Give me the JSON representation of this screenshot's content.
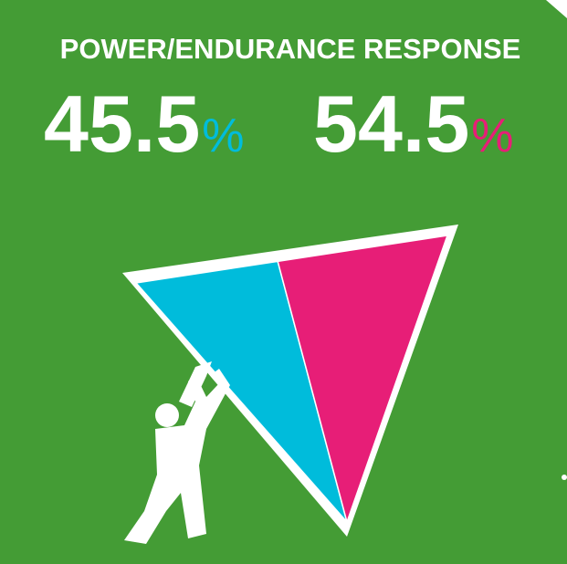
{
  "chart_data": {
    "type": "split-triangle",
    "title": "POWER/ENDURANCE RESPONSE",
    "values": [
      45.5,
      54.5
    ],
    "unit": "%",
    "colors": [
      "#00bcdb",
      "#e71e77"
    ],
    "background": "#449c35"
  }
}
